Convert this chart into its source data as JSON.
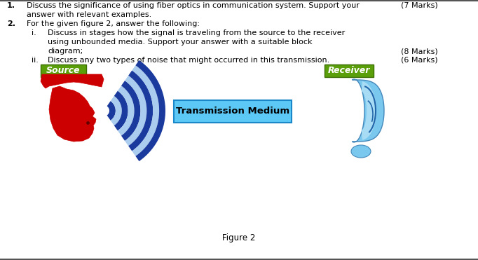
{
  "title": "Figure 2",
  "background_color": "#ffffff",
  "text_color": "#000000",
  "question1": "Discuss the significance of using fiber optics in communication system. Support your",
  "question1b": "answer with relevant examples.",
  "q1_marks": "(7 Marks)",
  "question2_header": "For the given figure 2, answer the following:",
  "question2i": "Discuss in stages how the signal is traveling from the source to the receiver",
  "question2i_b": "using unbounded media. Support your answer with a suitable block",
  "question2i_c": "diagram;",
  "q2i_marks": "(8 Marks)",
  "question2ii": "Discuss any two types of noise that might occurred in this transmission.",
  "q2ii_marks": "(6 Marks)",
  "source_label": "Source",
  "receiver_label": "Receiver",
  "transmission_label": "Transmission Medium",
  "label_bg_color": "#5a9e0a",
  "label_border_color": "#3a6e00",
  "transmission_bg_color": "#5bc8f5",
  "transmission_border_color": "#1a88c8",
  "wave_dark": "#1a3a9e",
  "wave_light": "#aaccee",
  "head_color": "#cc0000",
  "ear_color": "#7bc8ef",
  "ear_inner": "#a8dcf5",
  "ear_line": "#2266aa"
}
